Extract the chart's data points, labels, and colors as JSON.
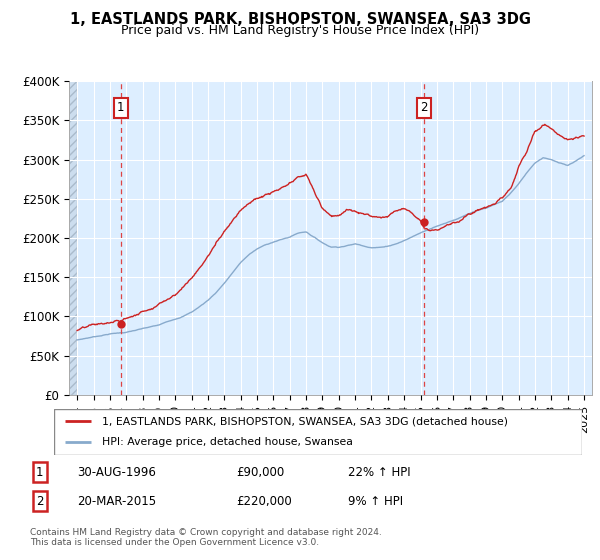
{
  "title": "1, EASTLANDS PARK, BISHOPSTON, SWANSEA, SA3 3DG",
  "subtitle": "Price paid vs. HM Land Registry's House Price Index (HPI)",
  "ylim": [
    0,
    400000
  ],
  "yticks": [
    0,
    50000,
    100000,
    150000,
    200000,
    250000,
    300000,
    350000,
    400000
  ],
  "ytick_labels": [
    "£0",
    "£50K",
    "£100K",
    "£150K",
    "£200K",
    "£250K",
    "£300K",
    "£350K",
    "£400K"
  ],
  "xlim_start": 1993.5,
  "xlim_end": 2025.5,
  "transaction1_x": 1996.66,
  "transaction1_y": 90000,
  "transaction2_x": 2015.22,
  "transaction2_y": 220000,
  "red_line_color": "#cc2222",
  "blue_line_color": "#88aacc",
  "dashed_color": "#dd4444",
  "legend_line1": "1, EASTLANDS PARK, BISHOPSTON, SWANSEA, SA3 3DG (detached house)",
  "legend_line2": "HPI: Average price, detached house, Swansea",
  "table_row1": [
    "1",
    "30-AUG-1996",
    "£90,000",
    "22% ↑ HPI"
  ],
  "table_row2": [
    "2",
    "20-MAR-2015",
    "£220,000",
    "9% ↑ HPI"
  ],
  "footnote": "Contains HM Land Registry data © Crown copyright and database right 2024.\nThis data is licensed under the Open Government Licence v3.0.",
  "chart_bg": "#ddeeff",
  "hatch_bg": "#ccddee",
  "grid_color": "#ffffff",
  "hpi_kx": [
    1994.0,
    1994.5,
    1995.0,
    1995.5,
    1996.0,
    1996.5,
    1997.0,
    1997.5,
    1998.0,
    1998.5,
    1999.0,
    1999.5,
    2000.0,
    2000.5,
    2001.0,
    2001.5,
    2002.0,
    2002.5,
    2003.0,
    2003.5,
    2004.0,
    2004.5,
    2005.0,
    2005.5,
    2006.0,
    2006.5,
    2007.0,
    2007.5,
    2008.0,
    2008.5,
    2009.0,
    2009.5,
    2010.0,
    2010.5,
    2011.0,
    2011.5,
    2012.0,
    2012.5,
    2013.0,
    2013.5,
    2014.0,
    2014.5,
    2015.0,
    2015.5,
    2016.0,
    2016.5,
    2017.0,
    2017.5,
    2018.0,
    2018.5,
    2019.0,
    2019.5,
    2020.0,
    2020.5,
    2021.0,
    2021.5,
    2022.0,
    2022.5,
    2023.0,
    2023.5,
    2024.0,
    2024.5,
    2025.0
  ],
  "hpi_ky": [
    70000,
    72000,
    74000,
    76000,
    78000,
    79000,
    80000,
    82000,
    84000,
    86000,
    88000,
    92000,
    96000,
    100000,
    105000,
    112000,
    120000,
    130000,
    142000,
    155000,
    168000,
    178000,
    185000,
    190000,
    194000,
    197000,
    200000,
    205000,
    207000,
    200000,
    193000,
    188000,
    188000,
    190000,
    192000,
    190000,
    188000,
    188000,
    190000,
    193000,
    197000,
    202000,
    207000,
    212000,
    216000,
    220000,
    224000,
    228000,
    232000,
    235000,
    238000,
    242000,
    246000,
    256000,
    268000,
    282000,
    295000,
    302000,
    300000,
    295000,
    292000,
    298000,
    305000
  ],
  "red_kx": [
    1994.0,
    1994.5,
    1995.0,
    1995.5,
    1996.0,
    1996.66,
    1997.0,
    1997.5,
    1998.0,
    1998.5,
    1999.0,
    1999.5,
    2000.0,
    2000.5,
    2001.0,
    2001.5,
    2002.0,
    2002.5,
    2003.0,
    2003.5,
    2004.0,
    2004.5,
    2005.0,
    2005.5,
    2006.0,
    2006.5,
    2007.0,
    2007.5,
    2008.0,
    2008.5,
    2009.0,
    2009.5,
    2010.0,
    2010.5,
    2011.0,
    2011.5,
    2012.0,
    2012.5,
    2013.0,
    2013.5,
    2014.0,
    2014.5,
    2015.0,
    2015.22,
    2015.5,
    2016.0,
    2016.5,
    2017.0,
    2017.5,
    2018.0,
    2018.5,
    2019.0,
    2019.5,
    2020.0,
    2020.5,
    2021.0,
    2021.5,
    2022.0,
    2022.5,
    2023.0,
    2023.5,
    2024.0,
    2024.5,
    2025.0
  ],
  "red_ky": [
    82000,
    84000,
    86000,
    87000,
    88000,
    90000,
    93000,
    97000,
    102000,
    108000,
    115000,
    122000,
    130000,
    140000,
    152000,
    165000,
    180000,
    196000,
    213000,
    228000,
    243000,
    253000,
    258000,
    262000,
    265000,
    268000,
    272000,
    278000,
    282000,
    260000,
    238000,
    230000,
    232000,
    238000,
    235000,
    230000,
    228000,
    228000,
    232000,
    238000,
    240000,
    235000,
    228000,
    220000,
    218000,
    220000,
    225000,
    230000,
    235000,
    240000,
    245000,
    248000,
    252000,
    258000,
    270000,
    295000,
    315000,
    340000,
    348000,
    342000,
    335000,
    330000,
    330000,
    330000
  ]
}
